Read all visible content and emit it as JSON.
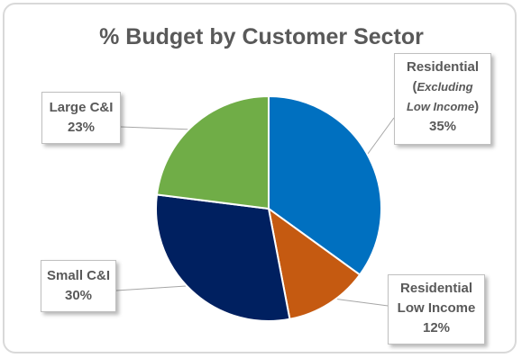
{
  "chart_data": {
    "type": "pie",
    "title": "% Budget by Customer Sector",
    "slices": [
      {
        "label": "Residential (Excluding Low Income)",
        "value": 35,
        "color": "#0070c0"
      },
      {
        "label": "Residential Low Income",
        "value": 12,
        "color": "#c55a11"
      },
      {
        "label": "Small C&I",
        "value": 30,
        "color": "#002060"
      },
      {
        "label": "Large C&I",
        "value": 23,
        "color": "#70ad47"
      }
    ],
    "start_angle_deg": 0,
    "direction": "clockwise",
    "legend": "none",
    "data_labels": "callouts"
  },
  "callouts": {
    "residential": {
      "line1": "Residential",
      "line2_open": "(",
      "line2_italic": "Excluding",
      "line3_italic": "Low Income",
      "line3_close": ")",
      "pct": "35%"
    },
    "low_income": {
      "line1": "Residential",
      "line2": "Low Income",
      "pct": "12%"
    },
    "small_ci": {
      "line1": "Small C&I",
      "pct": "30%"
    },
    "large_ci": {
      "line1": "Large C&I",
      "pct": "23%"
    }
  }
}
